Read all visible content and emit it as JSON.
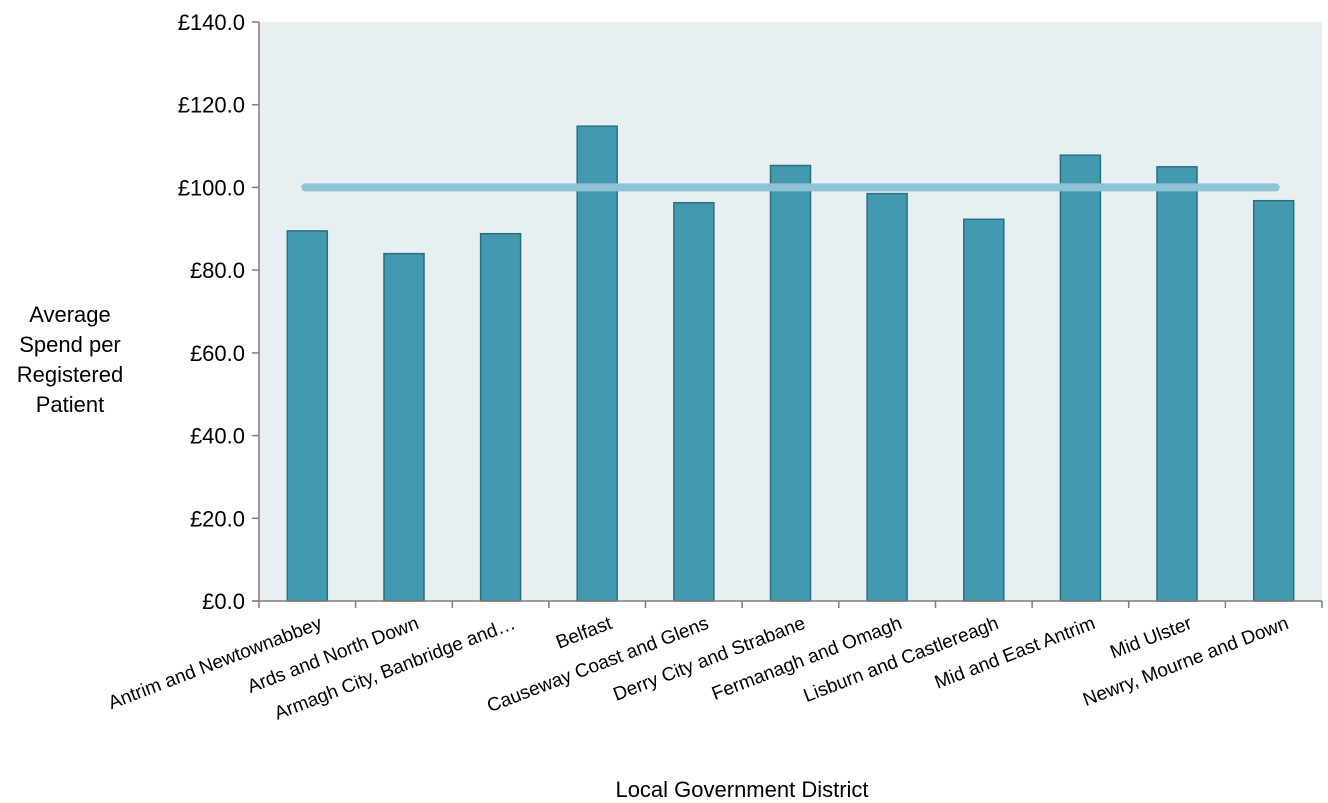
{
  "chart_data": {
    "type": "bar",
    "title": "",
    "xlabel": "Local Government District",
    "ylabel_lines": [
      "Average",
      "Spend per",
      "Registered",
      "Patient"
    ],
    "ylim": [
      0,
      140
    ],
    "y_ticks": [
      0,
      20,
      40,
      60,
      80,
      100,
      120,
      140
    ],
    "y_tick_labels": [
      "£0.0",
      "£20.0",
      "£40.0",
      "£60.0",
      "£80.0",
      "£100.0",
      "£120.0",
      "£140.0"
    ],
    "categories": [
      "Antrim and Newtownabbey",
      "Ards and North Down",
      "Armagh City, Banbridge and…",
      "Belfast",
      "Causeway Coast and Glens",
      "Derry City and Strabane",
      "Fermanagh and Omagh",
      "Lisburn and Castlereagh",
      "Mid and East Antrim",
      "Mid Ulster",
      "Newry, Mourne and Down"
    ],
    "values": [
      89.5,
      84.0,
      88.8,
      114.8,
      96.3,
      105.3,
      98.5,
      92.3,
      107.8,
      105.0,
      96.8
    ],
    "reference_line": 100.0,
    "grid": false,
    "legend": "none",
    "colors": {
      "bar": "#4299B0",
      "bar_edge": "#2B6E80",
      "reference_line": "#8EC3D6",
      "plot_background": "#E8EFF3",
      "axis": "#7F7F7F"
    }
  }
}
